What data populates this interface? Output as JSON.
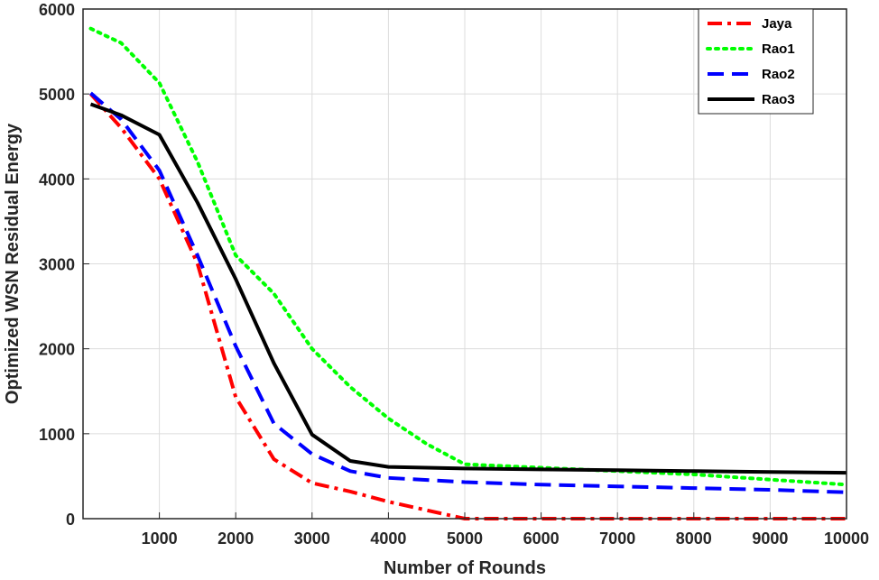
{
  "chart_data": {
    "type": "line",
    "title": "",
    "xlabel": "Number of Rounds",
    "ylabel": "Optimized WSN Residual Energy",
    "xlim": [
      0,
      10000
    ],
    "ylim": [
      0,
      6000
    ],
    "x_ticks": [
      "1000",
      "2000",
      "3000",
      "4000",
      "5000",
      "6000",
      "7000",
      "8000",
      "9000",
      "10000"
    ],
    "y_ticks": [
      "0",
      "1000",
      "2000",
      "3000",
      "4000",
      "5000",
      "6000"
    ],
    "grid": true,
    "legend_position": "top-right",
    "series": [
      {
        "name": "Jaya",
        "color": "#ff0000",
        "style": "dash-dot",
        "x": [
          100,
          500,
          1000,
          1500,
          2000,
          2500,
          3000,
          3500,
          4000,
          4500,
          5000,
          6000,
          7000,
          8000,
          9000,
          10000
        ],
        "y": [
          5000,
          4600,
          4000,
          3000,
          1430,
          700,
          420,
          320,
          200,
          100,
          0,
          0,
          0,
          0,
          0,
          0
        ]
      },
      {
        "name": "Rao1",
        "color": "#00ff00",
        "style": "dotted",
        "x": [
          100,
          500,
          1000,
          1500,
          2000,
          2500,
          3000,
          3500,
          4000,
          4500,
          5000,
          6000,
          7000,
          8000,
          9000,
          10000
        ],
        "y": [
          5770,
          5600,
          5130,
          4200,
          3100,
          2650,
          2000,
          1550,
          1180,
          880,
          640,
          600,
          560,
          520,
          460,
          400
        ]
      },
      {
        "name": "Rao2",
        "color": "#0000ff",
        "style": "dashed",
        "x": [
          100,
          500,
          1000,
          1500,
          2000,
          2500,
          3000,
          3500,
          4000,
          5000,
          6000,
          7000,
          8000,
          9000,
          10000
        ],
        "y": [
          5010,
          4700,
          4100,
          3100,
          2030,
          1120,
          760,
          560,
          480,
          430,
          400,
          380,
          360,
          340,
          310
        ]
      },
      {
        "name": "Rao3",
        "color": "#000000",
        "style": "solid",
        "x": [
          100,
          500,
          1000,
          1500,
          2000,
          2500,
          3000,
          3500,
          4000,
          5000,
          6000,
          7000,
          8000,
          9000,
          10000
        ],
        "y": [
          4880,
          4750,
          4520,
          3720,
          2820,
          1830,
          990,
          680,
          610,
          590,
          580,
          570,
          560,
          550,
          540
        ]
      }
    ]
  }
}
